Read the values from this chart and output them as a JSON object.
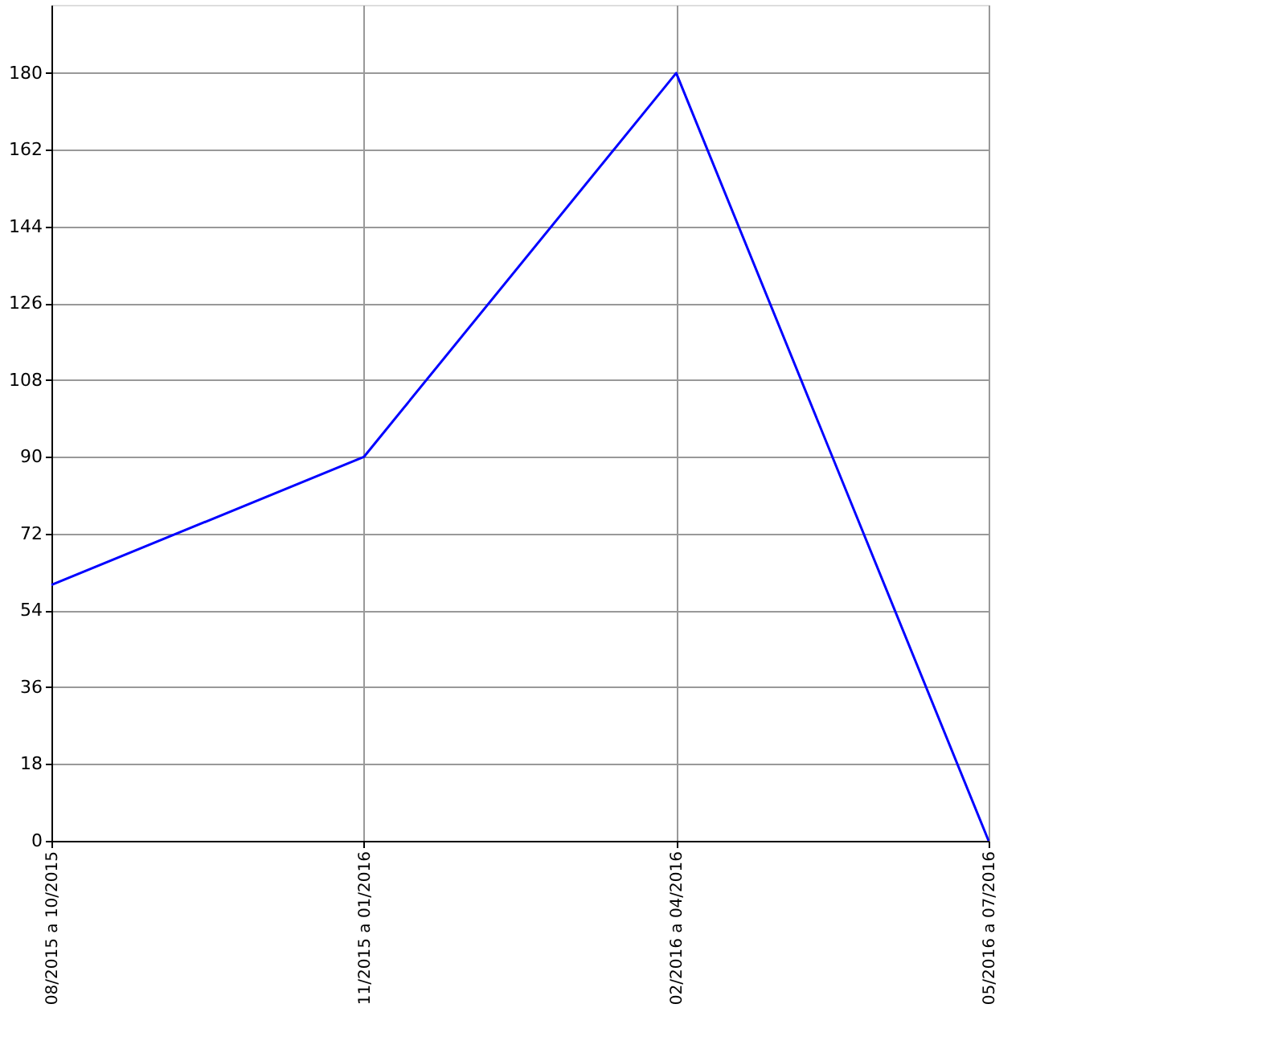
{
  "chart_data": {
    "type": "line",
    "categories": [
      "08/2015 a 10/2015",
      "11/2015 a 01/2016",
      "02/2016 a 04/2016",
      "05/2016 a 07/2016"
    ],
    "series": [
      {
        "color": "#0000ff",
        "values": [
          60,
          90,
          180,
          0
        ]
      }
    ],
    "ylim": [
      0,
      196
    ],
    "yticks": [
      0,
      18,
      36,
      54,
      72,
      90,
      108,
      126,
      144,
      162,
      180
    ],
    "grid": true,
    "marker": "none",
    "line_style": "solid"
  }
}
